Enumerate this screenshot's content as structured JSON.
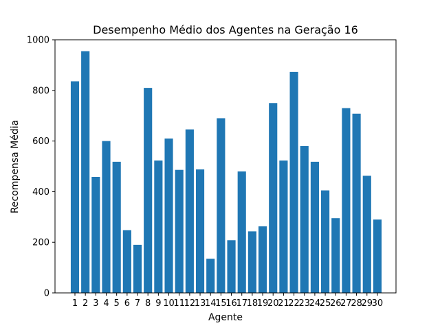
{
  "chart_data": {
    "type": "bar",
    "title": "Desempenho Médio dos Agentes na Geração 16",
    "xlabel": "Agente",
    "ylabel": "Recompensa Média",
    "ylim": [
      0,
      1000
    ],
    "yticks": [
      0,
      200,
      400,
      600,
      800,
      1000
    ],
    "grid": false,
    "bar_color": "#1f77b4",
    "categories": [
      "1",
      "2",
      "3",
      "4",
      "5",
      "6",
      "7",
      "8",
      "9",
      "10",
      "11",
      "12",
      "13",
      "14",
      "15",
      "16",
      "17",
      "18",
      "19",
      "20",
      "21",
      "22",
      "23",
      "24",
      "25",
      "26",
      "27",
      "28",
      "29",
      "30"
    ],
    "values": [
      836,
      955,
      458,
      600,
      518,
      248,
      190,
      810,
      523,
      610,
      486,
      646,
      488,
      135,
      690,
      208,
      480,
      243,
      263,
      750,
      523,
      873,
      580,
      518,
      405,
      295,
      730,
      708,
      463,
      290
    ]
  }
}
